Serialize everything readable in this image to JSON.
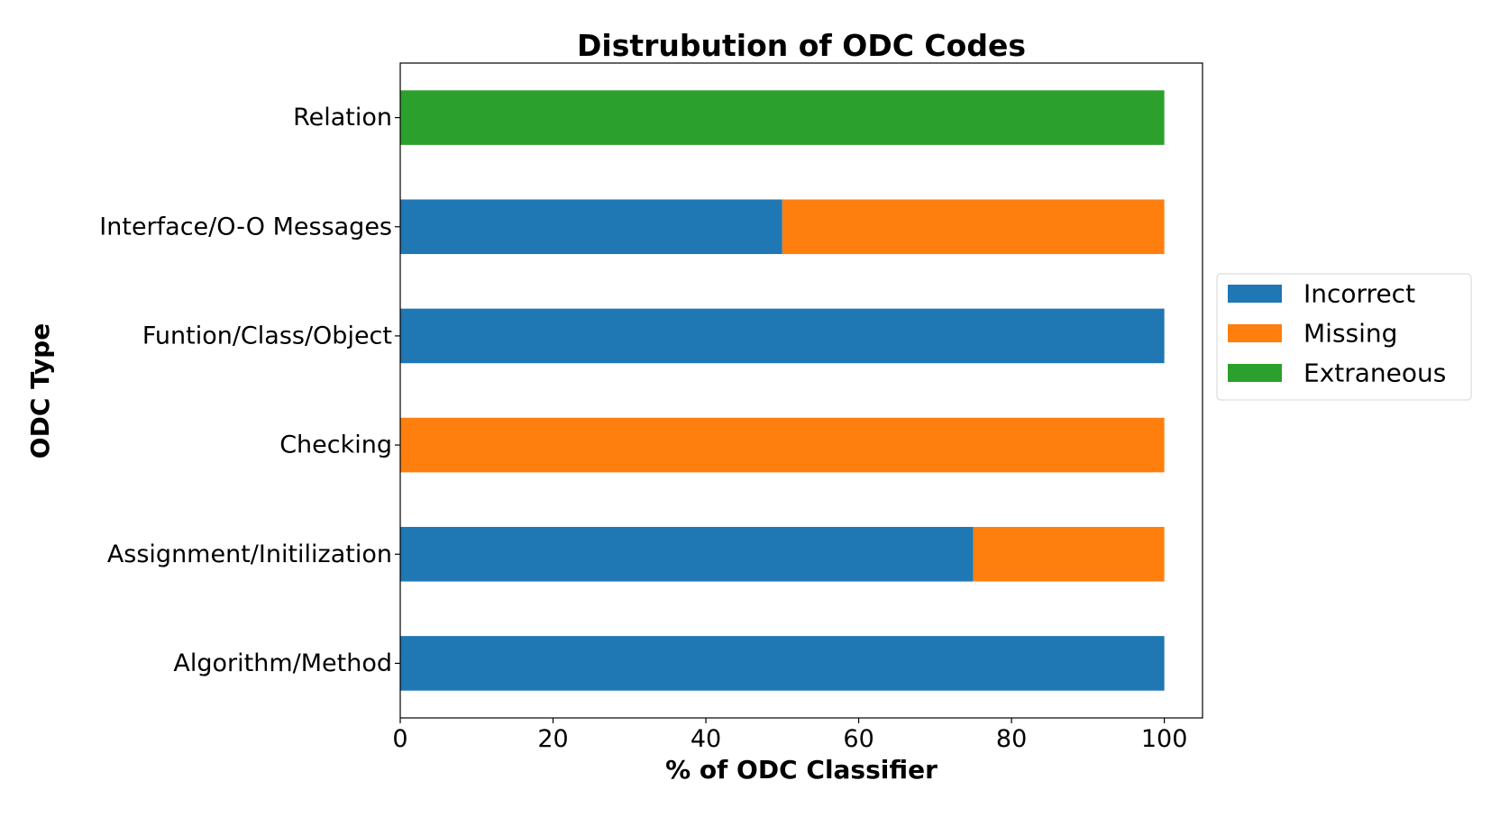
{
  "chart_data": {
    "type": "bar",
    "orientation": "horizontal",
    "stacked": true,
    "title": "Distrubution of ODC Codes",
    "xlabel": "% of ODC Classifier",
    "ylabel": "ODC Type",
    "xlim": [
      0,
      105
    ],
    "xticks": [
      0,
      20,
      40,
      60,
      80,
      100
    ],
    "grid": false,
    "legend_position": "right-center",
    "categories": [
      "Algorithm/Method",
      "Assignment/Initilization",
      "Checking",
      "Funtion/Class/Object",
      "Interface/O-O Messages",
      "Relation"
    ],
    "series": [
      {
        "name": "Incorrect",
        "color": "#1f77b4",
        "values": [
          100,
          75,
          0,
          100,
          50,
          0
        ]
      },
      {
        "name": "Missing",
        "color": "#ff7f0e",
        "values": [
          0,
          25,
          100,
          0,
          50,
          0
        ]
      },
      {
        "name": "Extraneous",
        "color": "#2ca02c",
        "values": [
          0,
          0,
          0,
          0,
          0,
          100
        ]
      }
    ]
  }
}
